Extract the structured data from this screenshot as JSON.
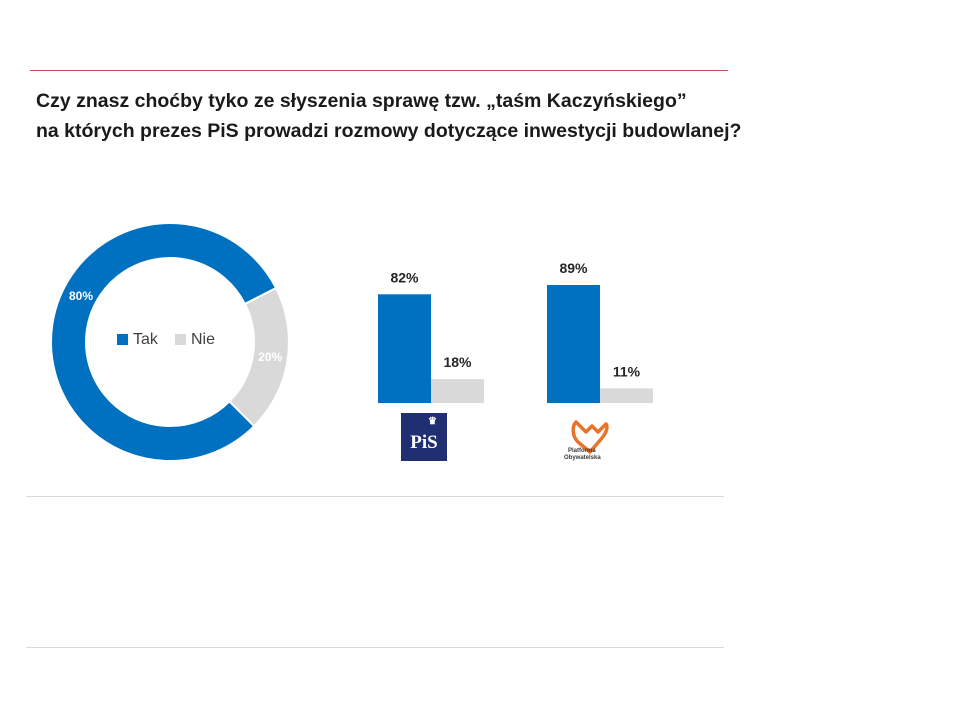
{
  "title": {
    "line1": "Czy znasz choćby tyko ze słyszenia sprawę tzw. „taśm Kaczyńskiego”",
    "line2": "na których prezes PiS prowadzi rozmowy dotyczące inwestycji budowlanej?"
  },
  "colors": {
    "tak": "#0070c0",
    "nie": "#d9d9d9",
    "accent_rule": "#c0504d"
  },
  "logos": {
    "pis": {
      "text": "PiS",
      "icon": "pis-logo"
    },
    "po": {
      "text_line1": "Platforma",
      "text_line2": "Obywatelska",
      "icon": "po-heart-logo"
    }
  },
  "chart_data": [
    {
      "type": "pie",
      "style": "donut",
      "categories": [
        "Tak",
        "Nie"
      ],
      "values": [
        80,
        20
      ],
      "labels": [
        "80%",
        "20%"
      ],
      "legend": [
        "Tak",
        "Nie"
      ],
      "legend_position": "center"
    },
    {
      "type": "bar",
      "group": "PiS",
      "categories": [
        "Tak",
        "Nie"
      ],
      "values": [
        82,
        18
      ],
      "labels": [
        "82%",
        "18%"
      ]
    },
    {
      "type": "bar",
      "group": "Platforma Obywatelska",
      "categories": [
        "Tak",
        "Nie"
      ],
      "values": [
        89,
        11
      ],
      "labels": [
        "89%",
        "11%"
      ]
    }
  ]
}
